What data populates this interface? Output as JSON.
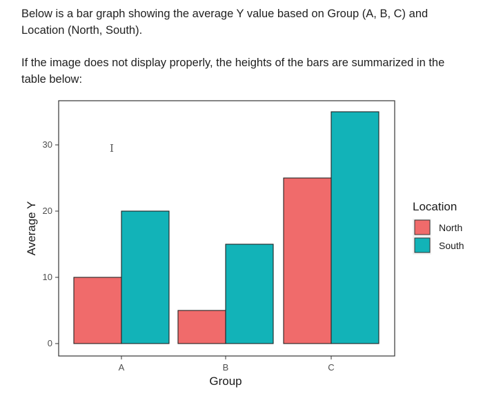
{
  "intro": {
    "paragraph1": "Below is a bar graph showing the average Y value based on Group (A, B, C) and Location (North, South).",
    "paragraph2": "If the image does not display properly, the heights of the bars are summarized in the table below:"
  },
  "chart_data": {
    "type": "bar",
    "categories": [
      "A",
      "B",
      "C"
    ],
    "series": [
      {
        "name": "North",
        "values": [
          10,
          5,
          25
        ],
        "color": "#f06b6b"
      },
      {
        "name": "South",
        "values": [
          20,
          15,
          35
        ],
        "color": "#12b3b8"
      }
    ],
    "xlabel": "Group",
    "ylabel": "Average Y",
    "yticks": [
      0,
      10,
      20,
      30
    ],
    "ylim": [
      0,
      35
    ],
    "grid": false,
    "legend": {
      "title": "Location",
      "placement": "right"
    },
    "annotation": "I"
  }
}
